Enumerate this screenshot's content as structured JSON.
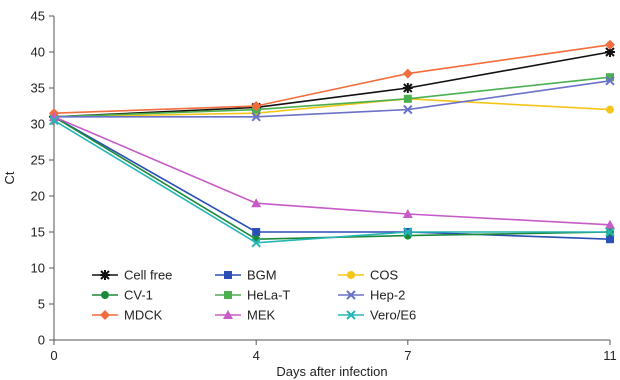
{
  "chart_data": {
    "type": "line",
    "xlabel": "Days after infection",
    "ylabel": "Ct",
    "x": [
      0,
      4,
      7,
      11
    ],
    "xticks": [
      "0",
      "4",
      "7",
      "11"
    ],
    "ylim": [
      0,
      45
    ],
    "yticks": [
      "0",
      "5",
      "10",
      "15",
      "20",
      "25",
      "30",
      "35",
      "40",
      "45"
    ],
    "grid": false,
    "legend_position": "lower-left",
    "series": [
      {
        "name": "Cell free",
        "values": [
          31.0,
          32.3,
          35.0,
          40.0
        ],
        "color": "#111111",
        "marker": "star"
      },
      {
        "name": "BGM",
        "values": [
          31.0,
          15.0,
          15.0,
          14.0
        ],
        "color": "#2a4fb5",
        "marker": "square"
      },
      {
        "name": "COS",
        "values": [
          31.0,
          31.5,
          33.5,
          32.0
        ],
        "color": "#f5c518",
        "marker": "circle"
      },
      {
        "name": "CV-1",
        "values": [
          31.0,
          14.0,
          14.5,
          15.0
        ],
        "color": "#1a8a3a",
        "marker": "circle"
      },
      {
        "name": "HeLa-T",
        "values": [
          31.0,
          32.0,
          33.5,
          36.5
        ],
        "color": "#4caf50",
        "marker": "square"
      },
      {
        "name": "Hep-2",
        "values": [
          31.0,
          31.0,
          32.0,
          36.0
        ],
        "color": "#6a72c8",
        "marker": "x"
      },
      {
        "name": "MDCK",
        "values": [
          31.5,
          32.5,
          37.0,
          41.0
        ],
        "color": "#f26d3d",
        "marker": "diamond"
      },
      {
        "name": "MEK",
        "values": [
          31.0,
          19.0,
          17.5,
          16.0
        ],
        "color": "#c75bc7",
        "marker": "triangle"
      },
      {
        "name": "Vero/E6",
        "values": [
          30.5,
          13.5,
          15.0,
          15.0
        ],
        "color": "#26b5b5",
        "marker": "x"
      }
    ]
  }
}
